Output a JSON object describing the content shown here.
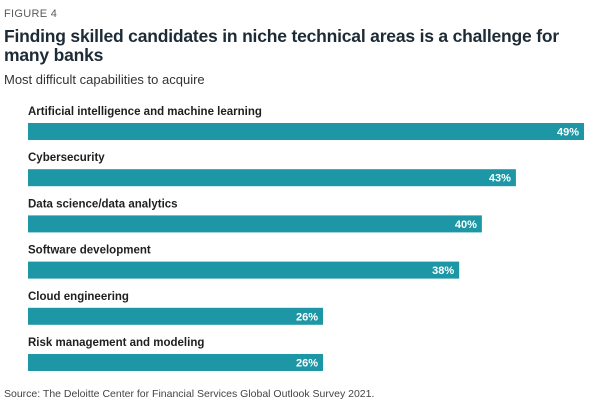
{
  "figure_label": "FIGURE 4",
  "source": "Source: The Deloitte Center for Financial Services Global Outlook Survey 2021.",
  "colors": {
    "bar": "#1d97a6",
    "title": "#1d2b36"
  },
  "chart_data": {
    "type": "bar",
    "orientation": "horizontal",
    "title": "Finding skilled candidates in niche technical areas is a challenge for many banks",
    "subtitle": "Most difficult capabilities to acquire",
    "xlabel": "",
    "ylabel": "",
    "value_suffix": "%",
    "xlim": [
      0,
      49
    ],
    "grid": false,
    "legend": "none",
    "categories": [
      "Artificial intelligence and machine learning",
      "Cybersecurity",
      "Data science/data analytics",
      "Software development",
      "Cloud engineering",
      "Risk management and modeling"
    ],
    "values": [
      49,
      43,
      40,
      38,
      26,
      26
    ],
    "value_labels": [
      "49%",
      "43%",
      "40%",
      "38%",
      "26%",
      "26%"
    ]
  }
}
